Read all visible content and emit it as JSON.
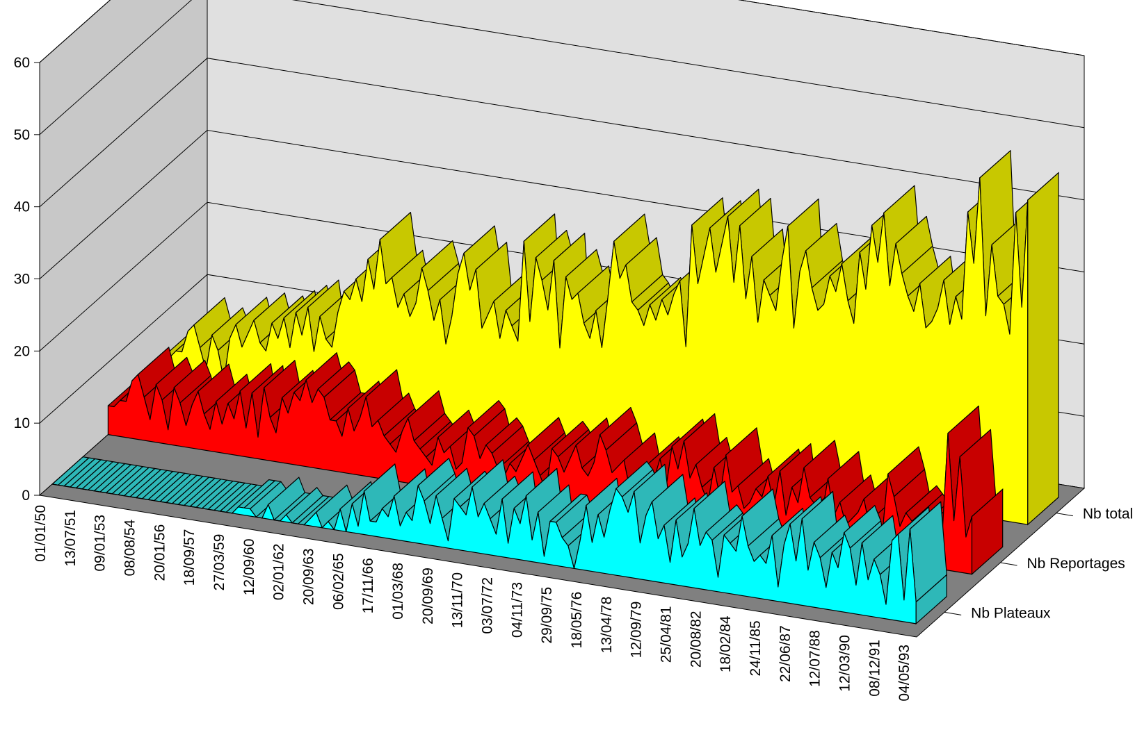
{
  "chart_data": {
    "type": "area",
    "title": "",
    "xlabel": "",
    "ylabel": "",
    "ylim": [
      0,
      60
    ],
    "yticks": [
      0,
      10,
      20,
      30,
      40,
      50,
      60
    ],
    "grid": true,
    "three_d": true,
    "x_tick_labels": [
      "01/01/50",
      "13/07/51",
      "09/01/53",
      "08/08/54",
      "20/01/56",
      "18/09/57",
      "27/03/59",
      "12/09/60",
      "02/01/62",
      "20/09/63",
      "06/02/65",
      "17/11/66",
      "01/03/68",
      "20/09/69",
      "13/11/70",
      "03/07/72",
      "04/11/73",
      "29/09/75",
      "18/05/76",
      "13/04/78",
      "12/09/79",
      "25/04/81",
      "20/08/82",
      "18/02/84",
      "24/11/85",
      "22/06/87",
      "12/07/88",
      "12/03/90",
      "08/12/91",
      "04/05/93"
    ],
    "series": [
      {
        "name": "Nb Plateaux",
        "color": "#00ffff",
        "side_color": "#2eb8b8",
        "values": [
          0,
          0,
          0,
          0,
          0,
          0,
          0,
          0,
          0,
          0,
          0,
          0,
          0,
          0,
          0,
          0,
          0,
          0,
          0,
          0,
          0,
          0,
          0,
          0,
          0,
          0,
          0,
          0,
          0,
          0,
          0,
          1,
          1,
          1,
          0,
          0,
          2,
          0,
          0,
          1,
          0,
          0,
          0,
          1,
          2,
          0,
          1,
          0,
          3,
          0,
          4,
          1,
          6,
          2,
          2,
          4,
          3,
          6,
          2,
          4,
          3,
          8,
          6,
          3,
          7,
          4,
          1,
          7,
          6,
          5,
          9,
          5,
          7,
          5,
          3,
          8,
          2,
          7,
          5,
          9,
          3,
          7,
          1,
          6,
          6,
          4,
          3,
          0,
          4,
          9,
          4,
          8,
          5,
          9,
          12,
          11,
          9,
          12,
          5,
          9,
          11,
          6,
          8,
          3,
          9,
          4,
          6,
          11,
          6,
          8,
          7,
          2,
          8,
          7,
          6,
          11,
          7,
          5,
          6,
          5,
          9,
          2,
          8,
          11,
          6,
          12,
          5,
          9,
          7,
          3,
          8,
          6,
          11,
          9,
          4,
          10,
          5,
          8,
          6,
          2,
          11,
          12,
          3,
          13,
          3
        ]
      },
      {
        "name": "Nb Reportages",
        "color": "#ff0000",
        "side_color": "#c80000",
        "values": [
          4,
          4,
          5,
          5,
          8,
          9,
          6,
          3,
          8,
          6,
          2,
          8,
          6,
          3,
          6,
          8,
          5,
          3,
          7,
          4,
          7,
          5,
          9,
          4,
          9,
          3,
          10,
          6,
          4,
          9,
          7,
          10,
          9,
          12,
          9,
          11,
          10,
          7,
          7,
          5,
          9,
          6,
          8,
          11,
          7,
          8,
          6,
          5,
          4,
          7,
          9,
          6,
          5,
          4,
          3,
          7,
          5,
          6,
          3,
          4,
          9,
          8,
          5,
          7,
          6,
          4,
          3,
          5,
          4,
          6,
          8,
          6,
          4,
          2,
          8,
          7,
          5,
          7,
          9,
          6,
          5,
          7,
          11,
          9,
          6,
          7,
          8,
          4,
          6,
          5,
          8,
          6,
          9,
          5,
          11,
          8,
          12,
          7,
          9,
          6,
          4,
          9,
          5,
          11,
          6,
          7,
          4,
          5,
          7,
          6,
          9,
          5,
          10,
          4,
          8,
          6,
          11,
          7,
          6,
          5,
          10,
          5,
          7,
          4,
          5,
          6,
          8,
          4,
          6,
          3,
          12,
          9,
          5,
          7,
          6,
          5,
          4,
          6,
          5,
          4,
          19,
          7,
          16,
          5,
          8
        ]
      },
      {
        "name": "Nb total",
        "color": "#ffff00",
        "side_color": "#c8c800",
        "values": [
          4,
          4,
          5,
          5,
          8,
          9,
          6,
          3,
          8,
          6,
          2,
          8,
          10,
          7,
          9,
          11,
          8,
          7,
          11,
          9,
          12,
          8,
          13,
          10,
          14,
          8,
          13,
          10,
          9,
          14,
          17,
          16,
          19,
          16,
          22,
          18,
          25,
          19,
          20,
          16,
          18,
          15,
          17,
          22,
          19,
          15,
          18,
          12,
          16,
          22,
          25,
          20,
          23,
          15,
          17,
          19,
          14,
          18,
          16,
          14,
          28,
          17,
          26,
          23,
          19,
          26,
          14,
          24,
          21,
          22,
          18,
          16,
          20,
          15,
          22,
          30,
          25,
          27,
          22,
          21,
          19,
          22,
          20,
          23,
          21,
          24,
          26,
          17,
          34,
          26,
          30,
          34,
          28,
          32,
          36,
          27,
          35,
          25,
          31,
          22,
          28,
          26,
          24,
          31,
          36,
          22,
          30,
          33,
          28,
          25,
          26,
          30,
          28,
          32,
          27,
          24,
          34,
          29,
          38,
          33,
          40,
          30,
          36,
          32,
          29,
          27,
          31,
          25,
          26,
          28,
          32,
          26,
          30,
          27,
          42,
          35,
          47,
          28,
          38,
          31,
          30,
          26,
          43,
          30,
          45
        ]
      }
    ]
  }
}
